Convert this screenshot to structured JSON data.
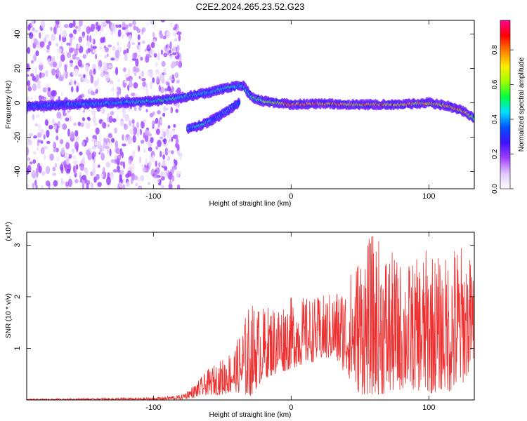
{
  "figure": {
    "title": "C2E2.2024.265.23.52.G23"
  },
  "chart_data": [
    {
      "type": "heatmap",
      "title": "C2E2.2024.265.23.52.G23",
      "xlabel": "Height of straight line (km)",
      "ylabel": "Frequency (Hz)",
      "xlim": [
        -192,
        133
      ],
      "ylim": [
        -50,
        48
      ],
      "x_ticks": [
        -100,
        0,
        100
      ],
      "x_tick_labels": [
        "-100",
        "0",
        "100"
      ],
      "y_ticks": [
        -40,
        -20,
        0,
        20,
        40
      ],
      "y_tick_labels": [
        "-40",
        "-20",
        "0",
        "20",
        "40"
      ],
      "colorbar": {
        "label": "Normalized spectral amplitude",
        "range": [
          0,
          0.97
        ],
        "ticks": [
          0.0,
          0.2,
          0.4,
          0.6,
          0.8
        ],
        "tick_labels": [
          "0.0",
          "0.2",
          "0.4",
          "0.6",
          "0.8"
        ],
        "colormap": [
          "#ffffff",
          "#e0c8ff",
          "#a040ff",
          "#4010ff",
          "#0050ff",
          "#00e0ff",
          "#00ff40",
          "#a0ff00",
          "#ffee00",
          "#ff8000",
          "#ff0000",
          "#ff0090"
        ]
      },
      "features": [
        {
          "name": "main trace",
          "x": [
            -192,
            -160,
            -130,
            -100,
            -80,
            -60,
            -45,
            -35,
            -28,
            -20,
            0,
            20,
            50,
            80,
            100,
            115,
            125,
            133
          ],
          "y": [
            -2,
            -1,
            0,
            1,
            3,
            6,
            9,
            10,
            3,
            1,
            -1,
            -0.5,
            -1,
            -1,
            0,
            -2,
            -5,
            -9
          ],
          "amplitude": [
            0.35,
            0.4,
            0.45,
            0.5,
            0.5,
            0.45,
            0.5,
            0.45,
            0.55,
            0.6,
            0.85,
            0.85,
            0.8,
            0.8,
            0.75,
            0.8,
            0.85,
            0.6
          ]
        },
        {
          "name": "lower branch",
          "x": [
            -75,
            -65,
            -55,
            -45,
            -38
          ],
          "y": [
            -15,
            -13,
            -9,
            -4,
            0
          ],
          "amplitude": [
            0.45,
            0.5,
            0.4,
            0.4,
            0.35
          ]
        }
      ],
      "grid": false
    },
    {
      "type": "line",
      "xlabel": "Height of straight line (km)",
      "ylabel": "SNR (10 * v/v)",
      "y_multiplier_label": "(x10⁴)",
      "xlim": [
        -192,
        133
      ],
      "ylim": [
        0,
        3.25
      ],
      "x_ticks": [
        -100,
        0,
        100
      ],
      "x_tick_labels": [
        "-100",
        "0",
        "100"
      ],
      "y_ticks": [
        1,
        2,
        3
      ],
      "y_tick_labels": [
        "1",
        "2",
        "3"
      ],
      "color": "#ee3030",
      "envelope": {
        "x": [
          -192,
          -100,
          -80,
          -70,
          -60,
          -50,
          -40,
          -30,
          -20,
          -10,
          0,
          10,
          20,
          30,
          40,
          50,
          60,
          70,
          80,
          90,
          100,
          110,
          120,
          133
        ],
        "min": [
          0,
          0,
          0.01,
          0.05,
          0.1,
          0.1,
          0.15,
          0.05,
          0.4,
          0.5,
          0.6,
          0.7,
          0.75,
          0.8,
          0.5,
          0.1,
          0.1,
          0.1,
          0.2,
          0.2,
          0.1,
          0.2,
          0.1,
          0.7
        ],
        "max": [
          0.02,
          0.05,
          0.1,
          0.3,
          0.6,
          0.8,
          1.1,
          1.9,
          1.8,
          1.9,
          2.0,
          2.0,
          2.0,
          2.1,
          2.3,
          2.95,
          3.25,
          2.95,
          2.7,
          2.7,
          3.0,
          2.7,
          3.15,
          2.7
        ]
      },
      "grid": false
    }
  ]
}
